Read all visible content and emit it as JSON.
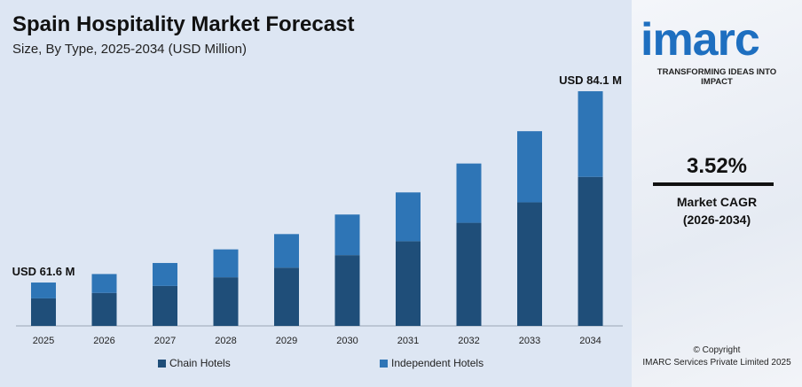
{
  "header": {
    "title": "Spain Hospitality Market Forecast",
    "subtitle": "Size, By Type, 2025-2034 (USD Million)"
  },
  "chart_data": {
    "type": "bar",
    "stacked": true,
    "title": "Spain Hospitality Market Forecast",
    "subtitle": "Size, By Type, 2025-2034 (USD Million)",
    "categories": [
      "2025",
      "2026",
      "2027",
      "2028",
      "2029",
      "2030",
      "2031",
      "2032",
      "2033",
      "2034"
    ],
    "series": [
      {
        "name": "Chain Hotels",
        "color": "#1f4e79",
        "values": [
          39.1,
          39.8,
          40.6,
          41.6,
          42.7,
          44.2,
          45.8,
          48.0,
          50.4,
          53.4
        ]
      },
      {
        "name": "Independent Hotels",
        "color": "#2e75b6",
        "values": [
          22.5,
          22.8,
          23.3,
          23.9,
          24.6,
          25.4,
          26.4,
          27.6,
          29.0,
          30.7
        ]
      }
    ],
    "annotations": [
      {
        "category": "2025",
        "text": "USD 61.6 M"
      },
      {
        "category": "2034",
        "text": "USD 84.1 M"
      }
    ],
    "legend": "bottom",
    "grid": false
  },
  "sidebar": {
    "logo": "imarc",
    "tagline": "TRANSFORMING IDEAS INTO IMPACT",
    "cagr_value": "3.52%",
    "cagr_label": "Market CAGR",
    "cagr_period": "(2026-2034)",
    "copyright": "© Copyright",
    "company": "IMARC Services Private Limited 2025"
  }
}
